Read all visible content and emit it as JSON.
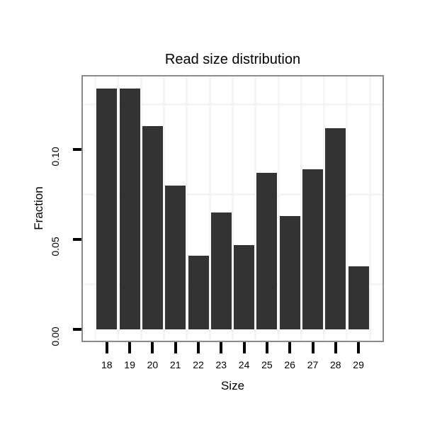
{
  "chart_data": {
    "type": "bar",
    "title": "Read size distribution",
    "xlabel": "Size",
    "ylabel": "Fraction",
    "categories": [
      "18",
      "19",
      "20",
      "21",
      "22",
      "23",
      "24",
      "25",
      "26",
      "27",
      "28",
      "29"
    ],
    "values": [
      0.134,
      0.134,
      0.113,
      0.08,
      0.041,
      0.065,
      0.047,
      0.087,
      0.063,
      0.089,
      0.112,
      0.035
    ],
    "y_ticks": [
      {
        "value": 0.0,
        "label": "0.00"
      },
      {
        "value": 0.05,
        "label": "0.05"
      },
      {
        "value": 0.1,
        "label": "0.10"
      }
    ],
    "y_minor_gridlines": [
      0.025,
      0.075,
      0.125
    ],
    "ylim": [
      -0.0063,
      0.1405
    ],
    "grid": "minor-only",
    "legend": "none",
    "colors": {
      "bar": "#333333",
      "panel_border": "#8b8b8b",
      "gridline": "#f5f5f5",
      "text": "#000000",
      "background": "#ffffff"
    }
  }
}
